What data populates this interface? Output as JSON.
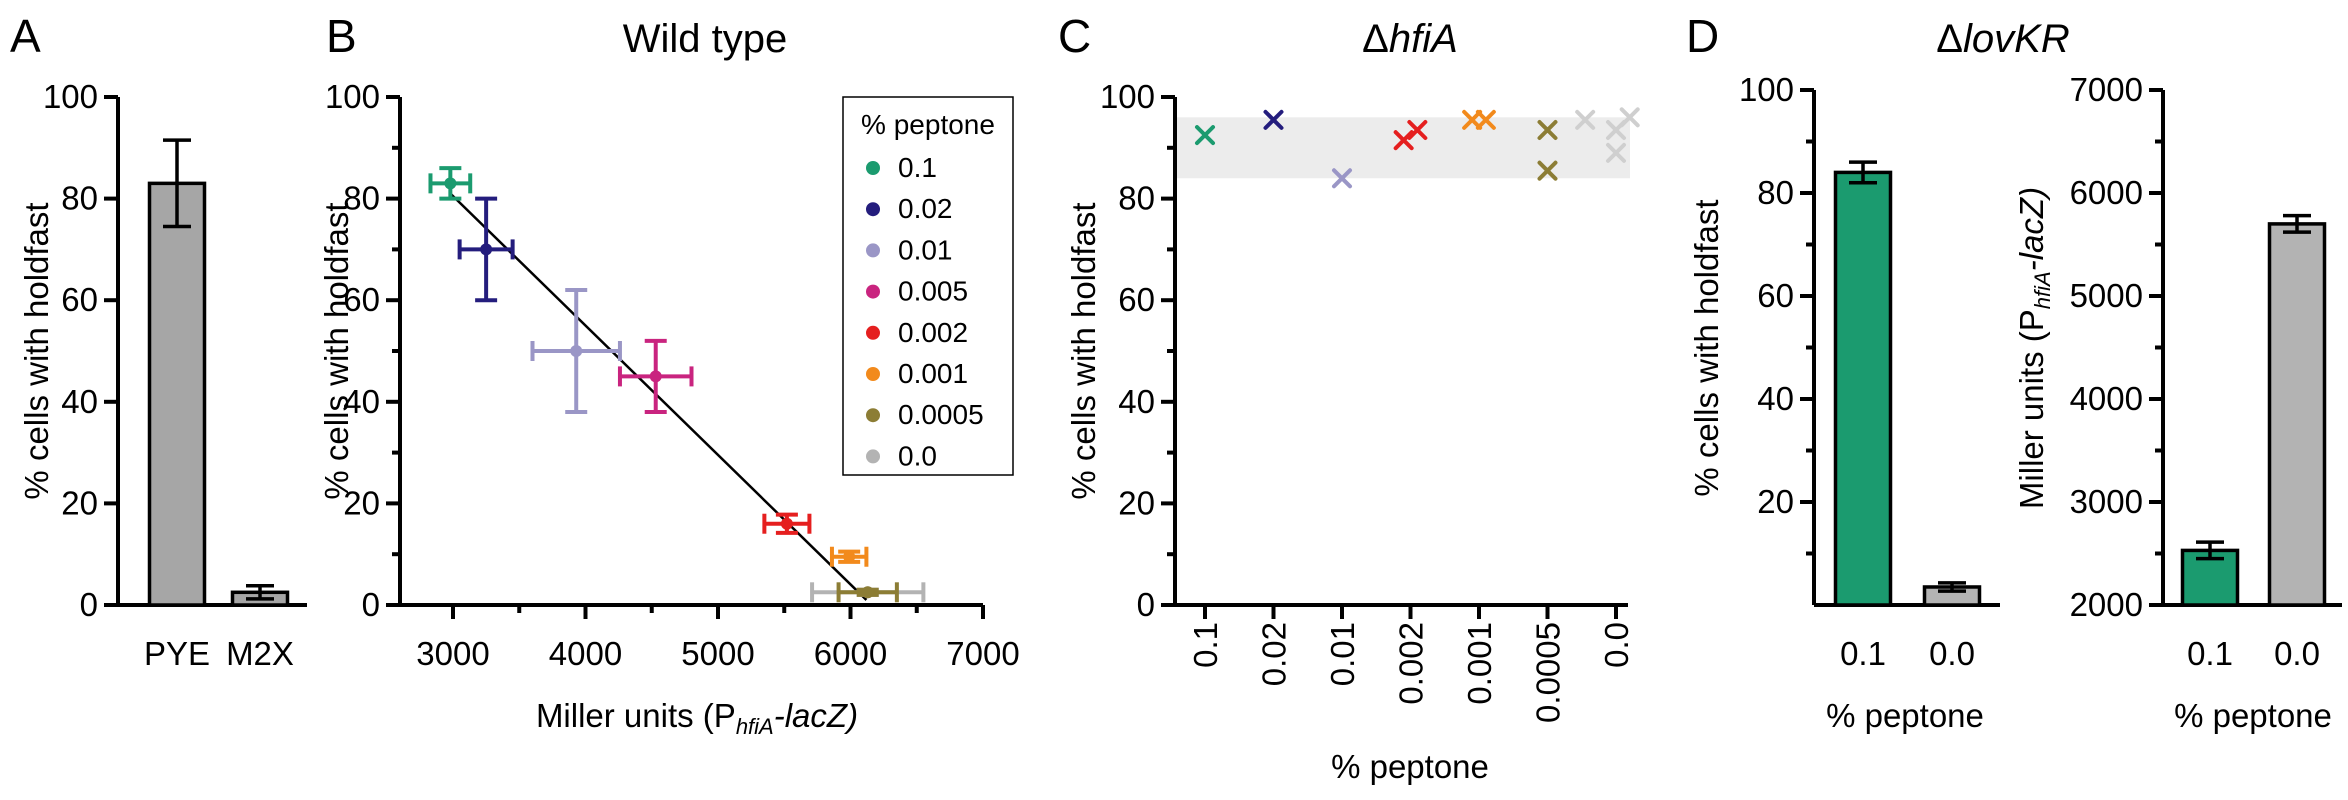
{
  "chart_data": [
    {
      "panel": "A",
      "type": "bar",
      "ylabel": "% cells with holdfast",
      "ylim": [
        0,
        100
      ],
      "yticks": [
        "0",
        "20",
        "40",
        "60",
        "80",
        "100"
      ],
      "categories": [
        "PYE",
        "M2X"
      ],
      "values": [
        83,
        2.5
      ],
      "errors": [
        8.5,
        1.3
      ],
      "colors": [
        "#a6a6a6",
        "#a6a6a6"
      ]
    },
    {
      "panel": "B",
      "type": "scatter",
      "title": "Wild type",
      "xlabel_main": "Miller units (P",
      "xlabel_sub": "hfiA",
      "xlabel_end": "-lacZ)",
      "ylabel": "% cells with holdfast",
      "xlim": [
        2600,
        7000
      ],
      "ylim": [
        0,
        100
      ],
      "xticks": [
        "3000",
        "4000",
        "5000",
        "6000",
        "7000"
      ],
      "yticks": [
        "0",
        "20",
        "40",
        "60",
        "80",
        "100"
      ],
      "legend_title": "% peptone",
      "series": [
        {
          "name": "0.1",
          "color": "#1b9b6f",
          "x": 2980,
          "y": 83,
          "xerr": 150,
          "yerr": 3
        },
        {
          "name": "0.02",
          "color": "#241d7d",
          "x": 3250,
          "y": 70,
          "xerr": 200,
          "yerr": 10
        },
        {
          "name": "0.01",
          "color": "#9a96c6",
          "x": 3930,
          "y": 50,
          "xerr": 330,
          "yerr": 12
        },
        {
          "name": "0.005",
          "color": "#c9247f",
          "x": 4530,
          "y": 45,
          "xerr": 270,
          "yerr": 7
        },
        {
          "name": "0.002",
          "color": "#e51f1f",
          "x": 5520,
          "y": 16,
          "xerr": 170,
          "yerr": 1.8
        },
        {
          "name": "0.001",
          "color": "#f28a1c",
          "x": 5990,
          "y": 9.5,
          "xerr": 130,
          "yerr": 1
        },
        {
          "name": "0.0005",
          "color": "#8c7d35",
          "x": 6130,
          "y": 2.5,
          "xerr": 220,
          "yerr": 0.5
        },
        {
          "name": "0.0",
          "color": "#b3b3b3",
          "x": 6130,
          "y": 2.5,
          "xerr": 420,
          "yerr": 0.5
        }
      ],
      "fit_line": [
        [
          2980,
          81
        ],
        [
          6120,
          1
        ]
      ]
    },
    {
      "panel": "C",
      "type": "scatter",
      "title_delta": "Δ",
      "title_gene": "hfiA",
      "xlabel": "% peptone",
      "ylabel": "% cells with holdfast",
      "ylim": [
        0,
        100
      ],
      "yticks": [
        "0",
        "20",
        "40",
        "60",
        "80",
        "100"
      ],
      "categories": [
        "0.1",
        "0.02",
        "0.01",
        "0.002",
        "0.001",
        "0.0005",
        "0.0"
      ],
      "band": [
        84,
        96
      ],
      "points": [
        {
          "cat": 0,
          "dx": 0.0,
          "y": 92.5,
          "color": "#1b9b6f"
        },
        {
          "cat": 1,
          "dx": 0.0,
          "y": 95.5,
          "color": "#241d7d"
        },
        {
          "cat": 2,
          "dx": 0.0,
          "y": 84,
          "color": "#9a96c6"
        },
        {
          "cat": 3,
          "dx": -0.1,
          "y": 91.5,
          "color": "#e51f1f"
        },
        {
          "cat": 3,
          "dx": 0.1,
          "y": 93.5,
          "color": "#e51f1f"
        },
        {
          "cat": 4,
          "dx": -0.1,
          "y": 95.5,
          "color": "#f28a1c"
        },
        {
          "cat": 4,
          "dx": 0.1,
          "y": 95.5,
          "color": "#f28a1c"
        },
        {
          "cat": 5,
          "dx": 0.0,
          "y": 93.5,
          "color": "#8c7d35"
        },
        {
          "cat": 5,
          "dx": 0.0,
          "y": 85.5,
          "color": "#8c7d35"
        },
        {
          "cat": 6,
          "dx": -0.45,
          "y": 95.5,
          "color": "#cfcfcf"
        },
        {
          "cat": 6,
          "dx": 0.0,
          "y": 93.5,
          "color": "#cfcfcf"
        },
        {
          "cat": 6,
          "dx": 0.2,
          "y": 96,
          "color": "#cfcfcf"
        },
        {
          "cat": 6,
          "dx": 0.0,
          "y": 89,
          "color": "#cfcfcf"
        }
      ]
    },
    {
      "panel": "D-left",
      "type": "bar",
      "title_delta": "Δ",
      "title_gene": "lovKR",
      "xlabel": "% peptone",
      "ylabel": "% cells with holdfast",
      "ylim": [
        0,
        100
      ],
      "yticks": [
        "20",
        "40",
        "60",
        "80",
        "100"
      ],
      "categories": [
        "0.1",
        "0.0"
      ],
      "values": [
        84,
        3.5
      ],
      "errors": [
        2,
        0.8
      ],
      "colors": [
        "#1b9b6f",
        "#b3b3b3"
      ]
    },
    {
      "panel": "D-right",
      "type": "bar",
      "xlabel": "% peptone",
      "ylabel_main": "Miller units (P",
      "ylabel_sub": "hfiA",
      "ylabel_end": "-lacZ)",
      "ylim": [
        2000,
        7000
      ],
      "yticks": [
        "2000",
        "3000",
        "4000",
        "5000",
        "6000",
        "7000"
      ],
      "categories": [
        "0.1",
        "0.0"
      ],
      "values": [
        2530,
        5700
      ],
      "errors": [
        80,
        80
      ],
      "colors": [
        "#1b9b6f",
        "#b3b3b3"
      ]
    }
  ],
  "panel_letters": {
    "a": "A",
    "b": "B",
    "c": "C",
    "d": "D"
  }
}
